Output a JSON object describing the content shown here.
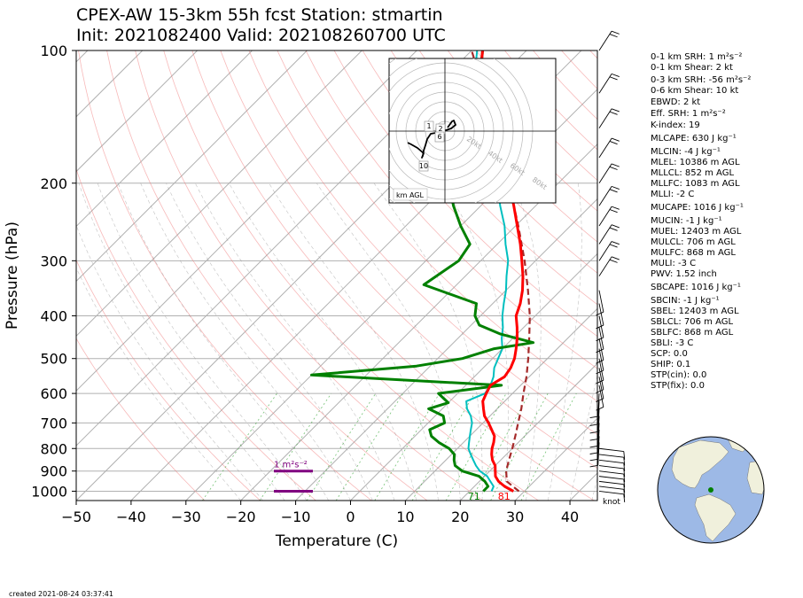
{
  "header": {
    "title_line1": "CPEX-AW 15-3km  55h fcst  Station: stmartin",
    "title_line2": "Init: 2021082400  Valid: 202108260700 UTC"
  },
  "footer": {
    "created": "created 2021-08-24 03:37:41"
  },
  "wind_units_label": "knot",
  "chart_data": {
    "type": "skew-t",
    "xlabel": "Temperature (C)",
    "ylabel": "Pressure (hPa)",
    "x_ticks": [
      -50,
      -40,
      -30,
      -20,
      -10,
      0,
      10,
      20,
      30,
      40
    ],
    "y_ticks": [
      100,
      200,
      300,
      400,
      500,
      600,
      700,
      800,
      900,
      1000
    ],
    "xlim": [
      -50,
      45
    ],
    "ylim": [
      1050,
      100
    ],
    "colors": {
      "temperature": "#ff0000",
      "dewpoint": "#008000",
      "wetbulb": "#00bfbf",
      "parcel": "#a52a2a",
      "storm_layer": "#800080"
    },
    "temperature_profile": [
      [
        1000,
        28
      ],
      [
        975,
        25.5
      ],
      [
        950,
        23.5
      ],
      [
        925,
        22
      ],
      [
        900,
        21
      ],
      [
        875,
        20
      ],
      [
        850,
        18.5
      ],
      [
        825,
        17.3
      ],
      [
        800,
        16.3
      ],
      [
        775,
        15.5
      ],
      [
        750,
        14.5
      ],
      [
        725,
        12.8
      ],
      [
        700,
        11
      ],
      [
        675,
        9
      ],
      [
        650,
        7.5
      ],
      [
        625,
        6
      ],
      [
        600,
        5.2
      ],
      [
        575,
        4.5
      ],
      [
        550,
        5.5
      ],
      [
        525,
        5
      ],
      [
        500,
        4
      ],
      [
        475,
        2.5
      ],
      [
        450,
        0.8
      ],
      [
        425,
        -1.2
      ],
      [
        400,
        -3.5
      ],
      [
        375,
        -5
      ],
      [
        350,
        -7
      ],
      [
        325,
        -9.5
      ],
      [
        300,
        -12.5
      ],
      [
        275,
        -15.8
      ],
      [
        250,
        -19.7
      ],
      [
        225,
        -24
      ],
      [
        200,
        -29
      ],
      [
        175,
        -34.5
      ],
      [
        150,
        -41
      ],
      [
        125,
        -49
      ],
      [
        110,
        -55
      ],
      [
        100,
        -58
      ]
    ],
    "dewpoint_profile": [
      [
        1000,
        22.5
      ],
      [
        975,
        22.5
      ],
      [
        950,
        21
      ],
      [
        925,
        19
      ],
      [
        900,
        15
      ],
      [
        875,
        12.7
      ],
      [
        850,
        11.5
      ],
      [
        825,
        10.5
      ],
      [
        800,
        8.5
      ],
      [
        775,
        5.5
      ],
      [
        750,
        3
      ],
      [
        725,
        1.5
      ],
      [
        700,
        3
      ],
      [
        675,
        1.5
      ],
      [
        650,
        -2.5
      ],
      [
        630,
        0
      ],
      [
        600,
        -3.5
      ],
      [
        575,
        6.5
      ],
      [
        545,
        -30
      ],
      [
        520,
        -12.5
      ],
      [
        500,
        -5.5
      ],
      [
        475,
        -1.5
      ],
      [
        460,
        4.5
      ],
      [
        440,
        -3
      ],
      [
        420,
        -8.5
      ],
      [
        400,
        -11
      ],
      [
        375,
        -13
      ],
      [
        340,
        -26
      ],
      [
        300,
        -24
      ],
      [
        275,
        -25
      ],
      [
        250,
        -30
      ],
      [
        225,
        -35
      ],
      [
        200,
        -40
      ],
      [
        175,
        -44
      ],
      [
        150,
        -48
      ],
      [
        125,
        -52
      ],
      [
        110,
        -55
      ],
      [
        100,
        -58
      ]
    ],
    "wetbulb_profile": [
      [
        1000,
        24
      ],
      [
        975,
        23.5
      ],
      [
        950,
        22
      ],
      [
        925,
        20.5
      ],
      [
        900,
        18.2
      ],
      [
        875,
        16.5
      ],
      [
        850,
        15
      ],
      [
        825,
        13.5
      ],
      [
        800,
        12
      ],
      [
        775,
        11
      ],
      [
        750,
        10
      ],
      [
        725,
        9
      ],
      [
        700,
        8
      ],
      [
        675,
        6.5
      ],
      [
        650,
        4.5
      ],
      [
        625,
        3
      ],
      [
        600,
        5
      ],
      [
        575,
        4.5
      ],
      [
        550,
        3.5
      ],
      [
        525,
        2
      ],
      [
        500,
        1
      ],
      [
        475,
        0
      ],
      [
        450,
        -2
      ],
      [
        425,
        -3.8
      ],
      [
        400,
        -6
      ],
      [
        375,
        -8
      ],
      [
        350,
        -10
      ],
      [
        325,
        -12.5
      ],
      [
        300,
        -15
      ],
      [
        275,
        -18.5
      ],
      [
        250,
        -22
      ],
      [
        225,
        -26.5
      ],
      [
        200,
        -31
      ],
      [
        175,
        -36.5
      ],
      [
        150,
        -43
      ],
      [
        125,
        -50.5
      ],
      [
        110,
        -56
      ],
      [
        100,
        -59
      ]
    ],
    "parcel_profile": [
      [
        1000,
        29
      ],
      [
        950,
        25
      ],
      [
        900,
        23
      ],
      [
        850,
        21.5
      ],
      [
        800,
        20
      ],
      [
        750,
        18.3
      ],
      [
        700,
        16.4
      ],
      [
        650,
        14.4
      ],
      [
        600,
        12
      ],
      [
        550,
        9.5
      ],
      [
        500,
        6.5
      ],
      [
        450,
        3
      ],
      [
        400,
        -1
      ],
      [
        350,
        -6
      ],
      [
        300,
        -12
      ],
      [
        250,
        -19.5
      ],
      [
        200,
        -29
      ],
      [
        150,
        -41.5
      ],
      [
        100,
        -60
      ]
    ],
    "surface_labels": {
      "temperature": "81",
      "dewpoint": "71"
    },
    "storm_relative_helicity_layer": {
      "label": "1 m²s⁻²",
      "top_hPa": 900,
      "bottom_hPa": 1000
    },
    "hodograph": {
      "label": "km AGL",
      "ring_labels": [
        "20kt",
        "40kt",
        "60kt",
        "80kt"
      ],
      "height_markers": [
        "1",
        "2",
        "6",
        "10"
      ]
    }
  },
  "indices": [
    {
      "label": "0-1 km SRH:",
      "value": "1",
      "unit": "m²s⁻²"
    },
    {
      "label": "0-1 km Shear:",
      "value": "2",
      "unit": "kt"
    },
    {
      "label": "0-3 km SRH:",
      "value": "-56",
      "unit": "m²s⁻²"
    },
    {
      "label": "0-6 km Shear:",
      "value": "10",
      "unit": "kt"
    },
    {
      "label": "EBWD:",
      "value": "2",
      "unit": "kt"
    },
    {
      "label": "Eff. SRH:",
      "value": "1",
      "unit": "m²s⁻²"
    },
    {
      "label": "K-index:",
      "value": "19",
      "unit": ""
    },
    {
      "label": "MLCAPE:",
      "value": "630",
      "unit": "J kg⁻¹"
    },
    {
      "label": "MLCIN:",
      "value": "-4",
      "unit": "J kg⁻¹"
    },
    {
      "label": "MLEL:",
      "value": "10386",
      "unit": "m AGL"
    },
    {
      "label": "MLLCL:",
      "value": "852",
      "unit": "m AGL"
    },
    {
      "label": "MLLFC:",
      "value": "1083",
      "unit": "m AGL"
    },
    {
      "label": "MLLI:",
      "value": "-2",
      "unit": "C"
    },
    {
      "label": "MUCAPE:",
      "value": "1016",
      "unit": "J kg⁻¹"
    },
    {
      "label": "MUCIN:",
      "value": "-1",
      "unit": "J kg⁻¹"
    },
    {
      "label": "MUEL:",
      "value": "12403",
      "unit": "m AGL"
    },
    {
      "label": "MULCL:",
      "value": "706",
      "unit": "m AGL"
    },
    {
      "label": "MULFC:",
      "value": "868",
      "unit": "m AGL"
    },
    {
      "label": "MULI:",
      "value": "-3",
      "unit": "C"
    },
    {
      "label": "PWV:",
      "value": "1.52",
      "unit": "inch"
    },
    {
      "label": "SBCAPE:",
      "value": "1016",
      "unit": "J kg⁻¹"
    },
    {
      "label": "SBCIN:",
      "value": "-1",
      "unit": "J kg⁻¹"
    },
    {
      "label": "SBEL:",
      "value": "12403",
      "unit": "m AGL"
    },
    {
      "label": "SBLCL:",
      "value": "706",
      "unit": "m AGL"
    },
    {
      "label": "SBLFC:",
      "value": "868",
      "unit": "m AGL"
    },
    {
      "label": "SBLI:",
      "value": "-3",
      "unit": "C"
    },
    {
      "label": "SCP:",
      "value": "0.0",
      "unit": ""
    },
    {
      "label": "SHIP:",
      "value": "0.1",
      "unit": ""
    },
    {
      "label": "STP(cin):",
      "value": "0.0",
      "unit": ""
    },
    {
      "label": "STP(fix):",
      "value": "0.0",
      "unit": ""
    }
  ],
  "locator_globe": {
    "marker_color": "#008000",
    "ocean_color": "#9db9e6",
    "land_color": "#f0f0dc"
  }
}
